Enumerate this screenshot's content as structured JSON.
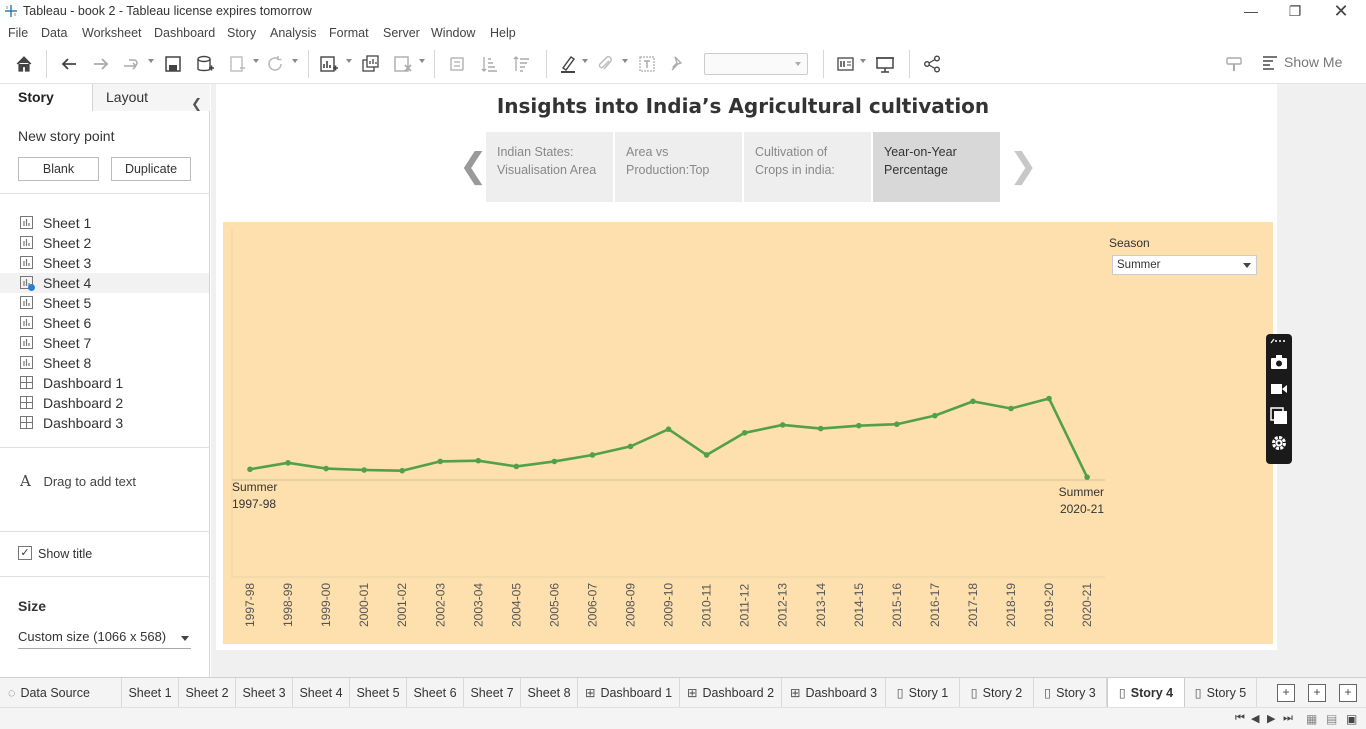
{
  "window": {
    "title": "Tableau - book 2 - Tableau license expires tomorrow"
  },
  "menu": [
    "File",
    "Data",
    "Worksheet",
    "Dashboard",
    "Story",
    "Analysis",
    "Format",
    "Server",
    "Window",
    "Help"
  ],
  "toolbar": {
    "show_me": "Show Me"
  },
  "left_pane": {
    "tabs": {
      "story": "Story",
      "layout": "Layout"
    },
    "new_story_point": "New story point",
    "blank_button": "Blank",
    "duplicate_button": "Duplicate",
    "items": [
      {
        "label": "Sheet 1",
        "type": "sheet"
      },
      {
        "label": "Sheet 2",
        "type": "sheet"
      },
      {
        "label": "Sheet 3",
        "type": "sheet"
      },
      {
        "label": "Sheet 4",
        "type": "sheet",
        "selected": true
      },
      {
        "label": "Sheet 5",
        "type": "sheet"
      },
      {
        "label": "Sheet 6",
        "type": "sheet"
      },
      {
        "label": "Sheet 7",
        "type": "sheet"
      },
      {
        "label": "Sheet 8",
        "type": "sheet"
      },
      {
        "label": "Dashboard 1",
        "type": "dashboard"
      },
      {
        "label": "Dashboard 2",
        "type": "dashboard"
      },
      {
        "label": "Dashboard 3",
        "type": "dashboard"
      }
    ],
    "drag_text": "Drag to add text",
    "show_title": "Show title",
    "show_title_checked": true,
    "size_title": "Size",
    "size_value": "Custom size (1066 x 568)"
  },
  "story": {
    "title": "Insights into India’s Agricultural cultivation",
    "points": [
      {
        "line1": "Indian States:",
        "line2": "Visualisation Area"
      },
      {
        "line1": "Area vs",
        "line2": "Production:Top"
      },
      {
        "line1": "Cultivation of",
        "line2": "Crops in india:"
      },
      {
        "line1": "Year-on-Year",
        "line2": "Percentage",
        "active": true
      }
    ],
    "filter": {
      "label": "Season",
      "value": "Summer"
    }
  },
  "chart_data": {
    "type": "line",
    "categories": [
      "1997-98",
      "1998-99",
      "1999-00",
      "2000-01",
      "2001-02",
      "2002-03",
      "2003-04",
      "2004-05",
      "2005-06",
      "2006-07",
      "2008-09",
      "2009-10",
      "2010-11",
      "2011-12",
      "2012-13",
      "2013-14",
      "2014-15",
      "2015-16",
      "2016-17",
      "2017-18",
      "2018-19",
      "2019-20",
      "2020-21"
    ],
    "values": [
      7.5,
      12,
      8,
      7,
      6.5,
      13,
      13.5,
      9.5,
      13,
      17.5,
      23.5,
      35.5,
      17.5,
      33,
      38.5,
      36,
      38,
      39,
      45,
      55,
      50,
      57,
      2
    ],
    "color": "#52a04a",
    "labels": {
      "first": {
        "line1": "Summer",
        "line2": "1997-98"
      },
      "last": {
        "line1": "Summer",
        "line2": "2020-21"
      }
    },
    "title": "",
    "xlabel": "",
    "ylabel": "",
    "grid": false
  },
  "bottom_tabs": [
    {
      "label": "Data Source",
      "type": "datasource"
    },
    {
      "label": "Sheet 1",
      "type": "sheet"
    },
    {
      "label": "Sheet 2",
      "type": "sheet"
    },
    {
      "label": "Sheet 3",
      "type": "sheet"
    },
    {
      "label": "Sheet 4",
      "type": "sheet"
    },
    {
      "label": "Sheet 5",
      "type": "sheet"
    },
    {
      "label": "Sheet 6",
      "type": "sheet"
    },
    {
      "label": "Sheet 7",
      "type": "sheet"
    },
    {
      "label": "Sheet 8",
      "type": "sheet"
    },
    {
      "label": "Dashboard 1",
      "type": "dashboard"
    },
    {
      "label": "Dashboard 2",
      "type": "dashboard"
    },
    {
      "label": "Dashboard 3",
      "type": "dashboard"
    },
    {
      "label": "Story 1",
      "type": "story"
    },
    {
      "label": "Story 2",
      "type": "story"
    },
    {
      "label": "Story 3",
      "type": "story"
    },
    {
      "label": "Story 4",
      "type": "story",
      "active": true
    },
    {
      "label": "Story 5",
      "type": "story"
    }
  ]
}
